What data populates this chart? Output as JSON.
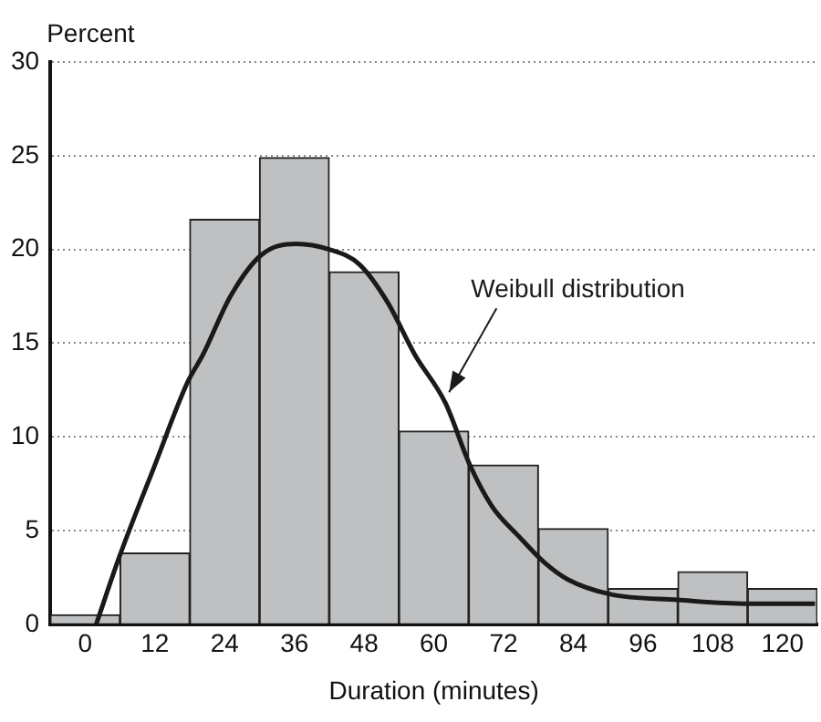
{
  "chart_data": {
    "type": "histogram",
    "xlabel": "Duration (minutes)",
    "ylabel": "Percent",
    "series": [
      {
        "color": "#bfc0c2",
        "bins": [
          -6,
          6,
          18,
          30,
          42,
          54,
          66,
          78,
          90,
          102,
          114,
          126
        ],
        "values": [
          0.5,
          3.8,
          21.6,
          24.9,
          18.8,
          10.3,
          8.5,
          5.1,
          1.9,
          2.8,
          1.9
        ]
      },
      {
        "type": "line",
        "name": "Weibull distribution",
        "color": "#1a1a1a",
        "x": [
          1.9,
          6.0,
          12,
          17.6,
          20.3,
          25,
          30.3,
          36.3,
          42,
          47.2,
          52,
          56.7,
          62,
          66.2,
          70,
          74.6,
          79,
          83,
          90.4,
          102,
          114,
          125.6
        ],
        "values": [
          0,
          3.7,
          8.5,
          12.9,
          14.4,
          17.5,
          19.7,
          20.3,
          20.0,
          19.2,
          17.2,
          14.4,
          11.8,
          8.5,
          6.3,
          4.7,
          3.3,
          2.4,
          1.6,
          1.3,
          1.1,
          1.1
        ]
      }
    ],
    "xlim": [
      -6,
      126
    ],
    "xticks": [
      0,
      12,
      24,
      36,
      48,
      60,
      72,
      84,
      96,
      108,
      120
    ],
    "ylim": [
      0,
      30
    ],
    "yticks": [
      0,
      5,
      10,
      15,
      20,
      25,
      30
    ],
    "grid": "y",
    "legend": false
  }
}
